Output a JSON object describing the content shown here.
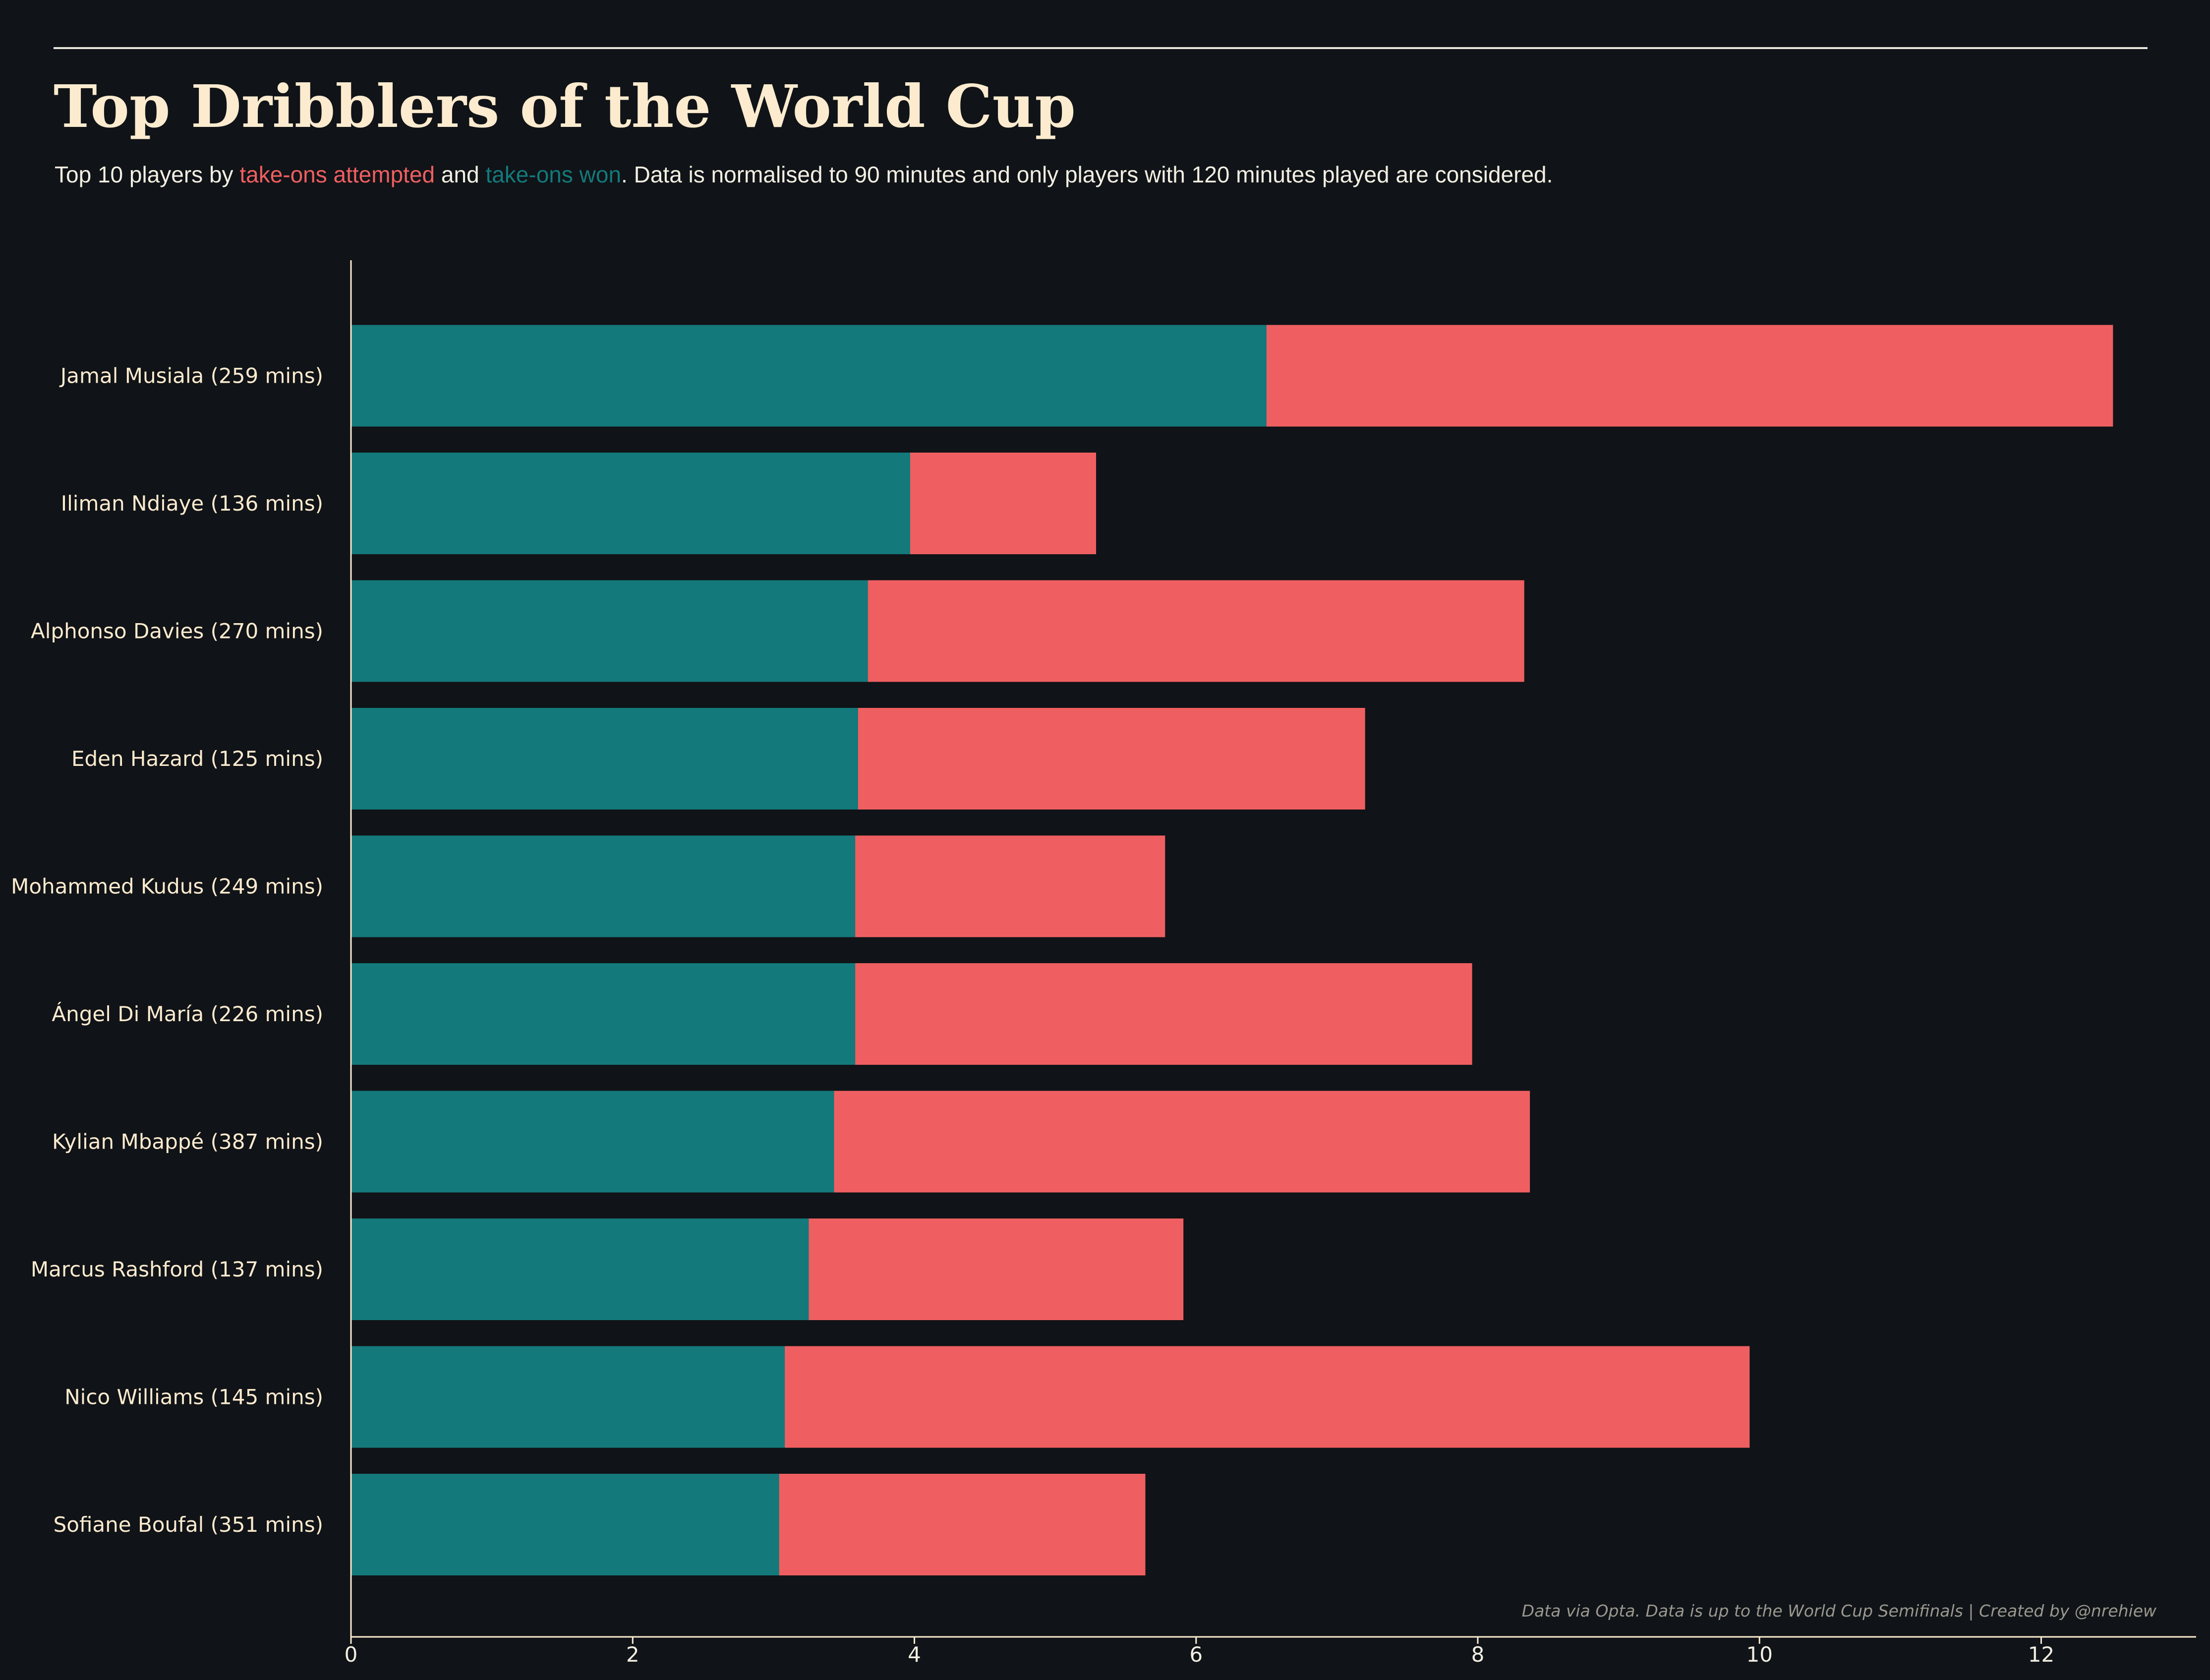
{
  "header": {
    "title": "Top Dribblers of the World Cup",
    "subtitle_prefix": "Top 10 players by ",
    "subtitle_attempted": "take-ons attempted",
    "subtitle_and": " and ",
    "subtitle_won": "take-ons won",
    "subtitle_suffix": ". Data is normalised to 90 minutes and only players with 120 minutes played are considered."
  },
  "footnote": "Data via Opta. Data is up to the World Cup Semifinals  |  Created by @nrehiew",
  "colors": {
    "background": "#101317",
    "won": "#13797b",
    "attempted": "#ef5f61",
    "axis": "#fcebcf",
    "text": "#f3efe3"
  },
  "chart_data": {
    "type": "bar",
    "orientation": "horizontal",
    "stacked": false,
    "categories": [
      "Jamal Musiala (259 mins)",
      "Iliman Ndiaye (136 mins)",
      "Alphonso Davies (270 mins)",
      "Eden Hazard (125 mins)",
      "Mohammed Kudus (249 mins)",
      "Ángel Di María (226 mins)",
      "Kylian Mbappé (387 mins)",
      "Marcus Rashford (137 mins)",
      "Nico Williams (145 mins)",
      "Sofiane Boufal (351 mins)"
    ],
    "series": [
      {
        "name": "take-ons attempted",
        "values": [
          12.51,
          5.29,
          8.33,
          7.2,
          5.78,
          7.96,
          8.37,
          5.91,
          9.93,
          5.64
        ]
      },
      {
        "name": "take-ons won",
        "values": [
          6.5,
          3.97,
          3.67,
          3.6,
          3.58,
          3.58,
          3.43,
          3.25,
          3.08,
          3.04
        ]
      }
    ],
    "xlim": [
      0,
      13.1
    ],
    "xticks": [
      0,
      2,
      4,
      6,
      8,
      10,
      12
    ],
    "grid": false
  }
}
